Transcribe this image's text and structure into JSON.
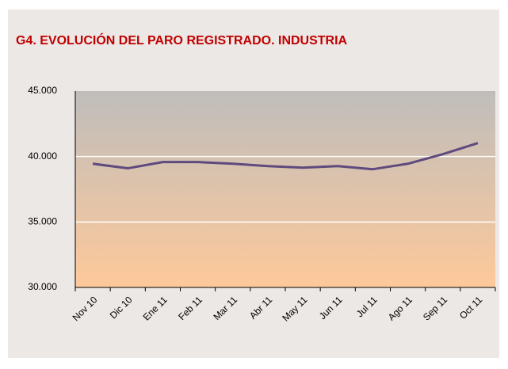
{
  "chart_data": {
    "type": "line",
    "title": "G4.  EVOLUCIÓN DEL PARO REGISTRADO. INDUSTRIA",
    "categories": [
      "Nov 10",
      "Dic 10",
      "Ene 11",
      "Feb 11",
      "Mar 11",
      "Abr 11",
      "May 11",
      "Jun 11",
      "Jul 11",
      "Ago 11",
      "Sep 11",
      "Oct 11"
    ],
    "values": [
      39450,
      39100,
      39580,
      39580,
      39450,
      39270,
      39150,
      39270,
      39030,
      39450,
      40180,
      41030
    ],
    "color": "#5f4a7e",
    "ylim": [
      30000,
      45000
    ],
    "yticks": [
      {
        "value": 30000,
        "label": "30.000"
      },
      {
        "value": 35000,
        "label": "35.000"
      },
      {
        "value": 40000,
        "label": "40.000"
      },
      {
        "value": 45000,
        "label": "45.000"
      }
    ],
    "grid": true
  }
}
